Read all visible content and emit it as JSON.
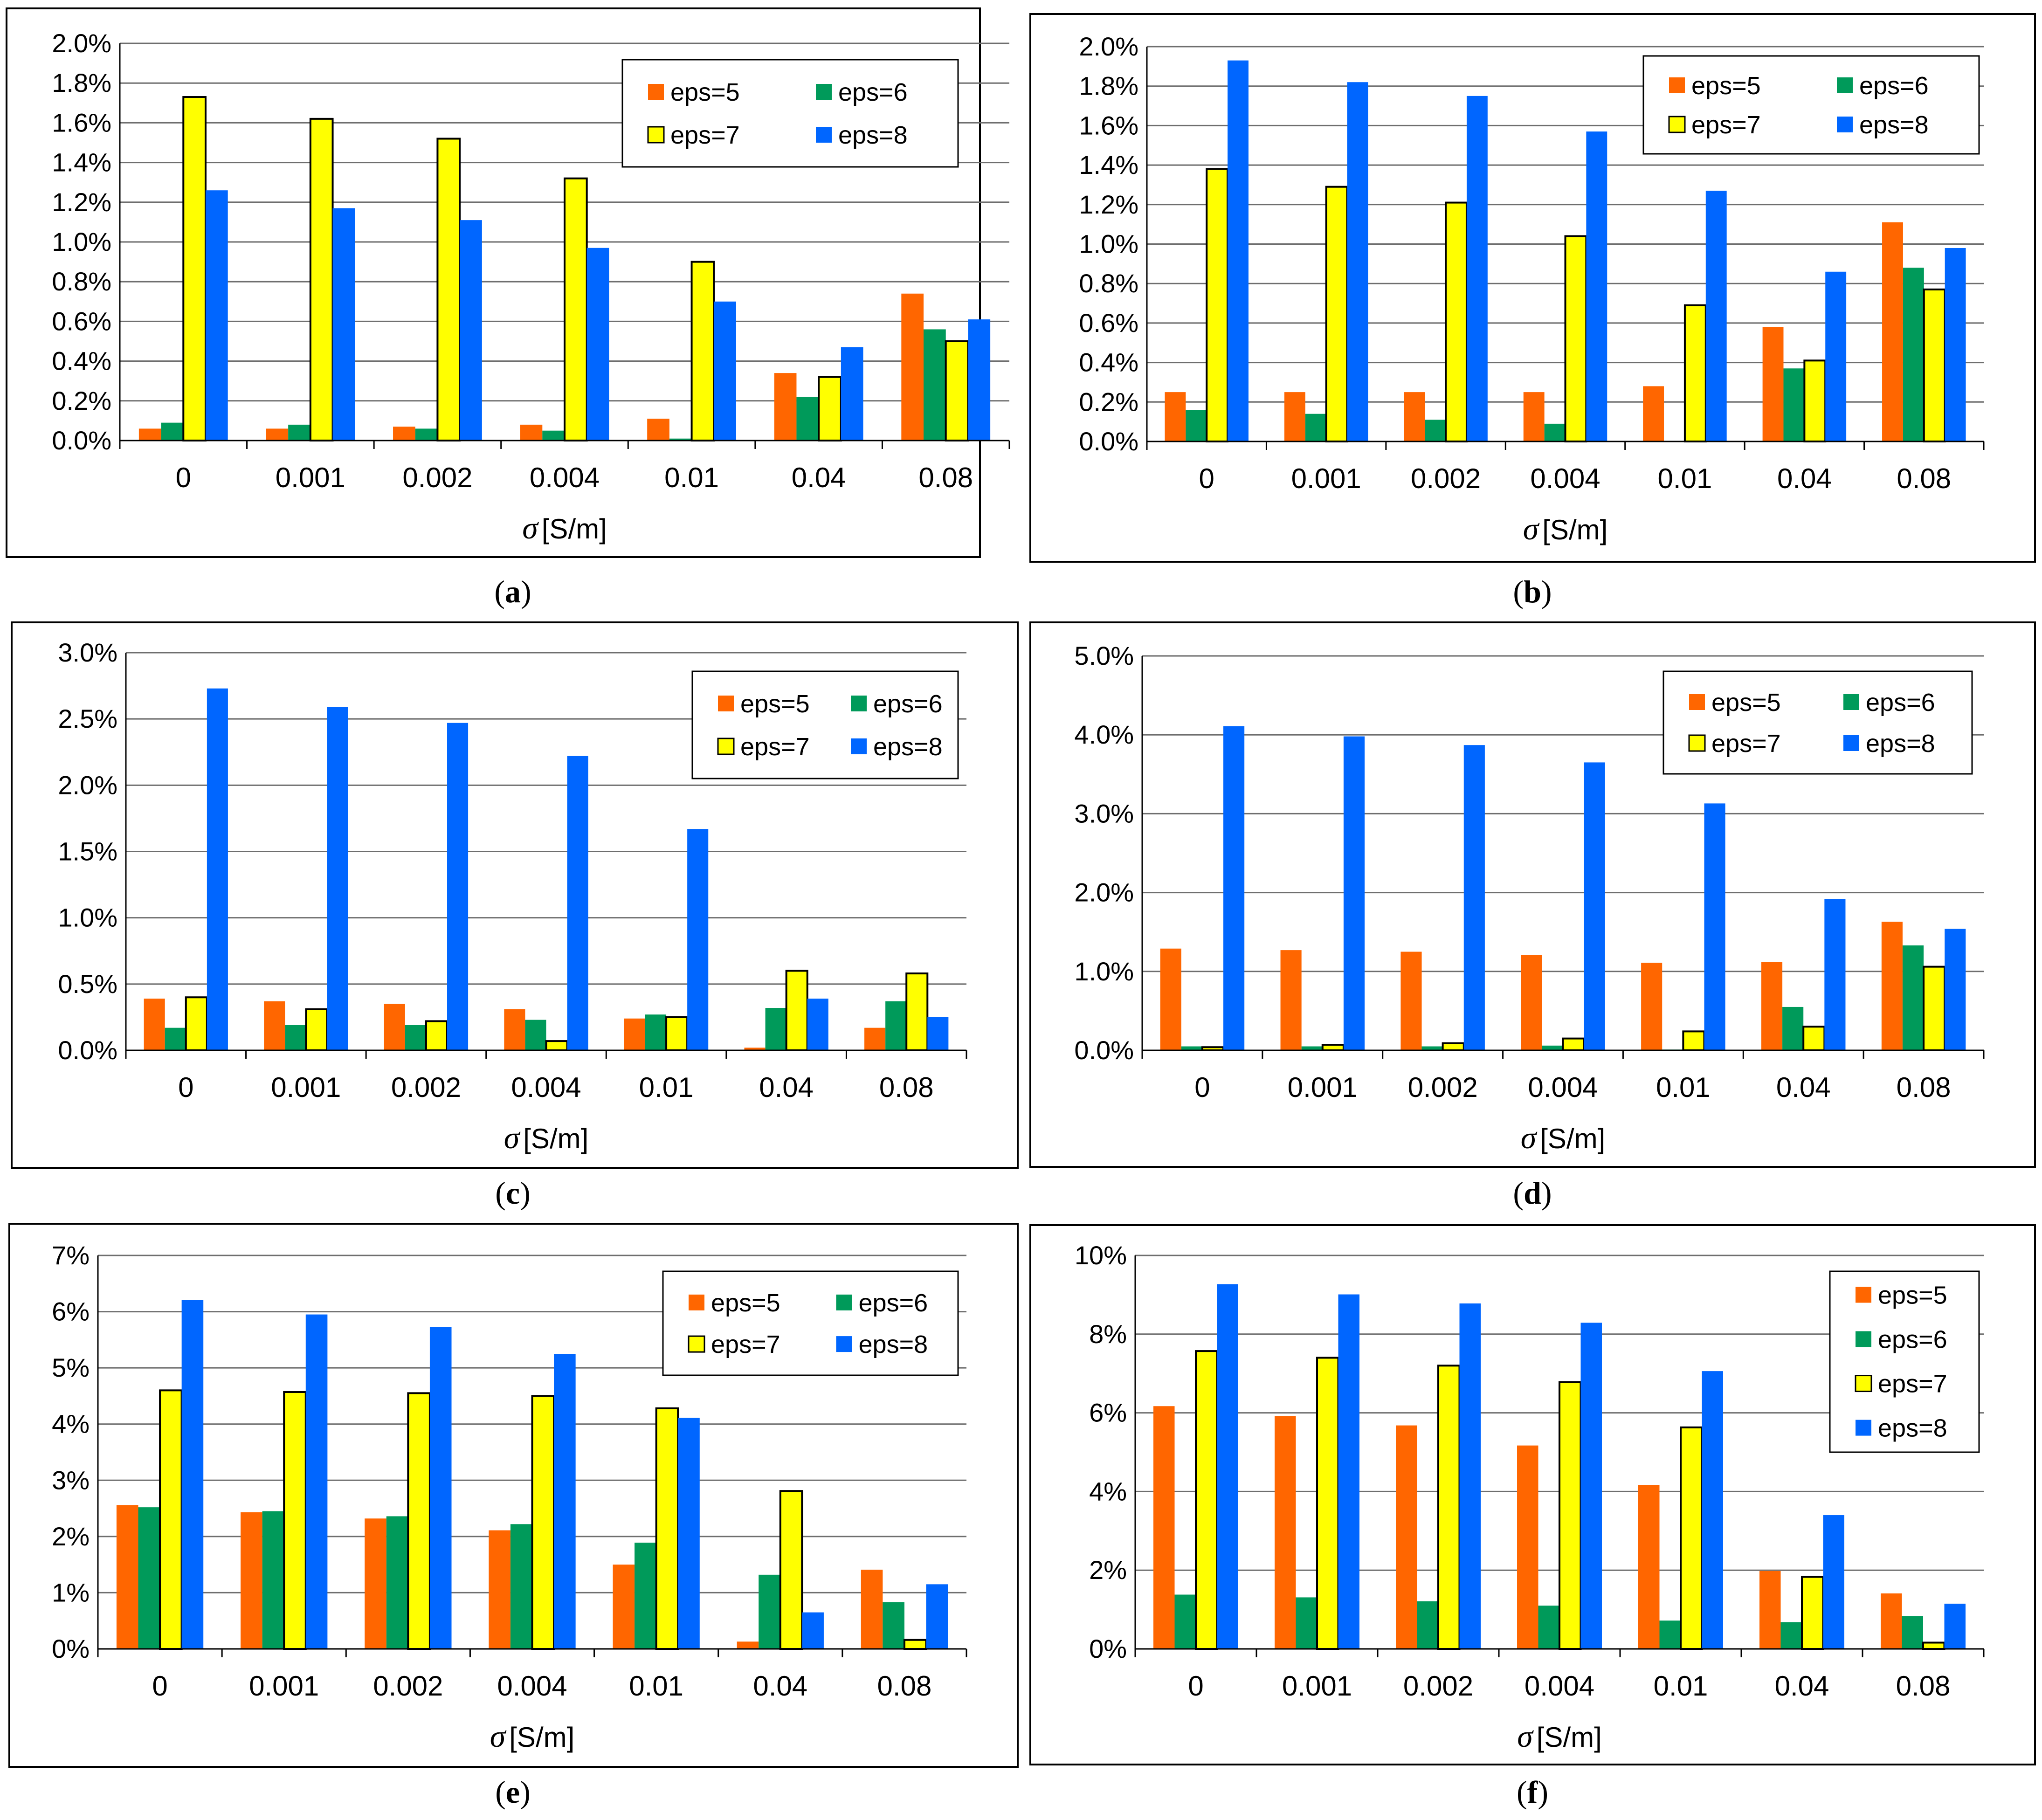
{
  "colors": {
    "eps=5": "#ff6600",
    "eps=6": "#009a5a",
    "eps=7": "#ffff00",
    "eps=8": "#0066ff"
  },
  "chart_data": [
    {
      "id": "a",
      "type": "bar",
      "caption_letter": "a",
      "categories": [
        "0",
        "0.001",
        "0.002",
        "0.004",
        "0.01",
        "0.04",
        "0.08"
      ],
      "series": [
        {
          "name": "eps=5",
          "values": [
            0.06,
            0.06,
            0.07,
            0.08,
            0.11,
            0.34,
            0.74
          ]
        },
        {
          "name": "eps=6",
          "values": [
            0.09,
            0.08,
            0.06,
            0.05,
            0.01,
            0.22,
            0.56
          ]
        },
        {
          "name": "eps=7",
          "values": [
            1.73,
            1.62,
            1.52,
            1.32,
            0.9,
            0.32,
            0.5
          ]
        },
        {
          "name": "eps=8",
          "values": [
            1.26,
            1.17,
            1.11,
            0.97,
            0.7,
            0.47,
            0.61
          ]
        }
      ],
      "ylim": [
        0,
        2.0
      ],
      "yticks": [
        0,
        0.2,
        0.4,
        0.6,
        0.8,
        1.0,
        1.2,
        1.4,
        1.6,
        1.8,
        2.0
      ],
      "ytick_labels": [
        "0.0%",
        "0.2%",
        "0.4%",
        "0.6%",
        "0.8%",
        "1.0%",
        "1.2%",
        "1.4%",
        "1.6%",
        "1.8%",
        "2.0%"
      ],
      "xlabel_symbol": "σ",
      "xlabel_unit": "[S/m]",
      "ylabel": "",
      "legend_layout": "grid"
    },
    {
      "id": "b",
      "type": "bar",
      "caption_letter": "b",
      "categories": [
        "0",
        "0.001",
        "0.002",
        "0.004",
        "0.01",
        "0.04",
        "0.08"
      ],
      "series": [
        {
          "name": "eps=5",
          "values": [
            0.25,
            0.25,
            0.25,
            0.25,
            0.28,
            0.58,
            1.11
          ]
        },
        {
          "name": "eps=6",
          "values": [
            0.16,
            0.14,
            0.11,
            0.09,
            0.0,
            0.37,
            0.88
          ]
        },
        {
          "name": "eps=7",
          "values": [
            1.38,
            1.29,
            1.21,
            1.04,
            0.69,
            0.41,
            0.77
          ]
        },
        {
          "name": "eps=8",
          "values": [
            1.93,
            1.82,
            1.75,
            1.57,
            1.27,
            0.86,
            0.98
          ]
        }
      ],
      "ylim": [
        0,
        2.0
      ],
      "yticks": [
        0,
        0.2,
        0.4,
        0.6,
        0.8,
        1.0,
        1.2,
        1.4,
        1.6,
        1.8,
        2.0
      ],
      "ytick_labels": [
        "0.0%",
        "0.2%",
        "0.4%",
        "0.6%",
        "0.8%",
        "1.0%",
        "1.2%",
        "1.4%",
        "1.6%",
        "1.8%",
        "2.0%"
      ],
      "xlabel_symbol": "σ",
      "xlabel_unit": "[S/m]",
      "ylabel": "",
      "legend_layout": "grid"
    },
    {
      "id": "c",
      "type": "bar",
      "caption_letter": "c",
      "categories": [
        "0",
        "0.001",
        "0.002",
        "0.004",
        "0.01",
        "0.04",
        "0.08"
      ],
      "series": [
        {
          "name": "eps=5",
          "values": [
            0.39,
            0.37,
            0.35,
            0.31,
            0.24,
            0.02,
            0.17
          ]
        },
        {
          "name": "eps=6",
          "values": [
            0.17,
            0.19,
            0.19,
            0.23,
            0.27,
            0.32,
            0.37
          ]
        },
        {
          "name": "eps=7",
          "values": [
            0.4,
            0.31,
            0.22,
            0.07,
            0.25,
            0.6,
            0.58
          ]
        },
        {
          "name": "eps=8",
          "values": [
            2.73,
            2.59,
            2.47,
            2.22,
            1.67,
            0.39,
            0.25
          ]
        }
      ],
      "ylim": [
        0,
        3.0
      ],
      "yticks": [
        0,
        0.5,
        1.0,
        1.5,
        2.0,
        2.5,
        3.0
      ],
      "ytick_labels": [
        "0.0%",
        "0.5%",
        "1.0%",
        "1.5%",
        "2.0%",
        "2.5%",
        "3.0%"
      ],
      "xlabel_symbol": "σ",
      "xlabel_unit": "[S/m]",
      "ylabel": "",
      "legend_layout": "grid"
    },
    {
      "id": "d",
      "type": "bar",
      "caption_letter": "d",
      "categories": [
        "0",
        "0.001",
        "0.002",
        "0.004",
        "0.01",
        "0.04",
        "0.08"
      ],
      "series": [
        {
          "name": "eps=5",
          "values": [
            1.29,
            1.27,
            1.25,
            1.21,
            1.11,
            1.12,
            1.63
          ]
        },
        {
          "name": "eps=6",
          "values": [
            0.05,
            0.05,
            0.05,
            0.06,
            0.01,
            0.55,
            1.33
          ]
        },
        {
          "name": "eps=7",
          "values": [
            0.04,
            0.07,
            0.09,
            0.15,
            0.24,
            0.3,
            1.06
          ]
        },
        {
          "name": "eps=8",
          "values": [
            4.11,
            3.98,
            3.87,
            3.65,
            3.13,
            1.92,
            1.54
          ]
        }
      ],
      "ylim": [
        0,
        5.0
      ],
      "yticks": [
        0,
        1.0,
        2.0,
        3.0,
        4.0,
        5.0
      ],
      "ytick_labels": [
        "0.0%",
        "1.0%",
        "2.0%",
        "3.0%",
        "4.0%",
        "5.0%"
      ],
      "xlabel_symbol": "σ",
      "xlabel_unit": "[S/m]",
      "ylabel": "",
      "legend_layout": "grid"
    },
    {
      "id": "e",
      "type": "bar",
      "caption_letter": "e",
      "categories": [
        "0",
        "0.001",
        "0.002",
        "0.004",
        "0.01",
        "0.04",
        "0.08"
      ],
      "series": [
        {
          "name": "eps=5",
          "values": [
            2.56,
            2.43,
            2.32,
            2.11,
            1.5,
            0.13,
            1.41
          ]
        },
        {
          "name": "eps=6",
          "values": [
            2.52,
            2.45,
            2.36,
            2.22,
            1.89,
            1.32,
            0.83
          ]
        },
        {
          "name": "eps=7",
          "values": [
            4.6,
            4.57,
            4.55,
            4.5,
            4.28,
            2.81,
            0.16
          ]
        },
        {
          "name": "eps=8",
          "values": [
            6.21,
            5.95,
            5.73,
            5.25,
            4.11,
            0.65,
            1.15
          ]
        }
      ],
      "ylim": [
        0,
        7
      ],
      "yticks": [
        0,
        1,
        2,
        3,
        4,
        5,
        6,
        7
      ],
      "ytick_labels": [
        "0%",
        "1%",
        "2%",
        "3%",
        "4%",
        "5%",
        "6%",
        "7%"
      ],
      "xlabel_symbol": "σ",
      "xlabel_unit": "[S/m]",
      "ylabel": "",
      "legend_layout": "grid"
    },
    {
      "id": "f",
      "type": "bar",
      "caption_letter": "f",
      "categories": [
        "0",
        "0.001",
        "0.002",
        "0.004",
        "0.01",
        "0.04",
        "0.08"
      ],
      "series": [
        {
          "name": "eps=5",
          "values": [
            6.17,
            5.92,
            5.68,
            5.17,
            4.17,
            1.98,
            1.41
          ]
        },
        {
          "name": "eps=6",
          "values": [
            1.38,
            1.31,
            1.21,
            1.1,
            0.72,
            0.68,
            0.83
          ]
        },
        {
          "name": "eps=7",
          "values": [
            7.57,
            7.4,
            7.2,
            6.78,
            5.63,
            1.83,
            0.16
          ]
        },
        {
          "name": "eps=8",
          "values": [
            9.27,
            9.01,
            8.78,
            8.29,
            7.06,
            3.4,
            1.15
          ]
        }
      ],
      "ylim": [
        0,
        10
      ],
      "yticks": [
        0,
        2,
        4,
        6,
        8,
        10
      ],
      "ytick_labels": [
        "0%",
        "2%",
        "4%",
        "6%",
        "8%",
        "10%"
      ],
      "xlabel_symbol": "σ",
      "xlabel_unit": "[S/m]",
      "ylabel": "",
      "legend_layout": "column"
    }
  ]
}
